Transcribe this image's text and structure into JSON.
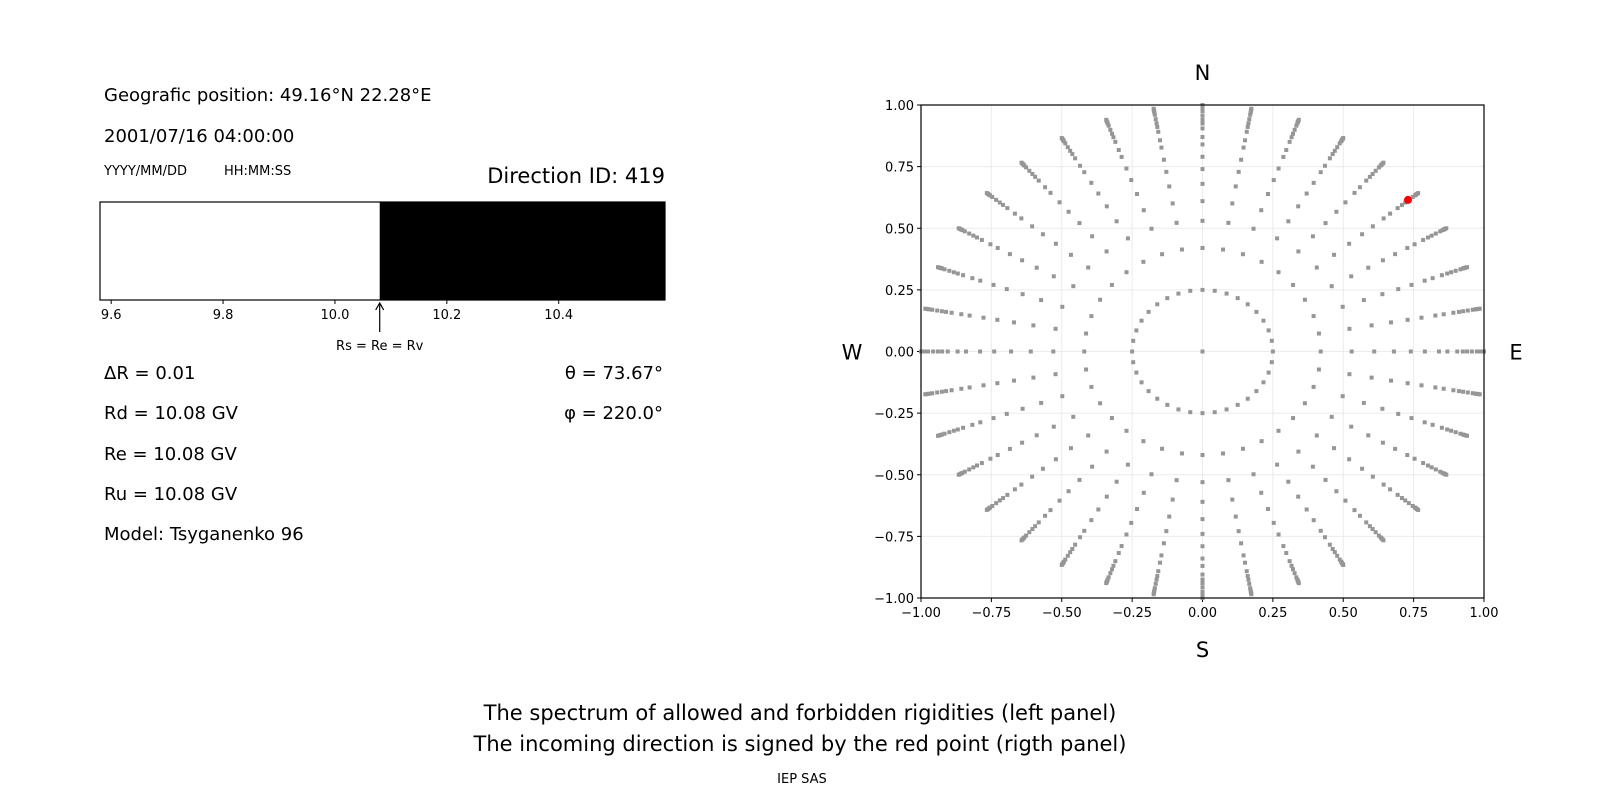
{
  "left_panel": {
    "position": "Geografic position: 49.16°N 22.28°E",
    "datetime": "2001/07/16 04:00:00",
    "date_format": "YYYY/MM/DD",
    "time_format": "HH:MM:SS",
    "direction_id": "Direction ID: 419",
    "delta_r": "ΔR = 0.01",
    "rd": "Rd = 10.08 GV",
    "re": "Re = 10.08 GV",
    "ru": "Ru = 10.08 GV",
    "model": "Model: Tsyganenko 96",
    "theta": "θ = 73.67°",
    "phi": "φ = 220.0°"
  },
  "footer": {
    "line1": "The spectrum of allowed and forbidden rigidities (left panel)",
    "line2": "The incoming direction is signed by the red point (rigth panel)",
    "credit": "IEP SAS"
  },
  "chart_data": [
    {
      "type": "bar",
      "description_of_marks": "rigidity spectrum: allowed (white) / forbidden (black)",
      "xlim": [
        9.58,
        10.59
      ],
      "x_ticks": [
        "9.6",
        "9.8",
        "10.0",
        "10.2",
        "10.4"
      ],
      "x_tick_values": [
        9.6,
        9.8,
        10.0,
        10.2,
        10.4
      ],
      "segments": [
        {
          "from": 9.58,
          "to": 10.08,
          "color": "#ffffff"
        },
        {
          "from": 10.08,
          "to": 10.59,
          "color": "#000000"
        }
      ],
      "annotation": {
        "text": "Rs = Re = Rv",
        "x": 10.08
      }
    },
    {
      "type": "scatter",
      "xlim": [
        -1,
        1
      ],
      "ylim": [
        -1,
        1
      ],
      "grid": true,
      "x_ticks": [
        "−1.00",
        "−0.75",
        "−0.50",
        "−0.25",
        "0.00",
        "0.25",
        "0.50",
        "0.75",
        "1.00"
      ],
      "y_ticks": [
        "−1.00",
        "−0.75",
        "−0.50",
        "−0.25",
        "0.00",
        "0.25",
        "0.50",
        "0.75",
        "1.00"
      ],
      "tick_values": [
        -1,
        -0.75,
        -0.5,
        -0.25,
        0,
        0.25,
        0.5,
        0.75,
        1
      ],
      "direction_labels": {
        "top": "N",
        "bottom": "S",
        "left": "W",
        "right": "E"
      },
      "grid_points": {
        "color": "#969696",
        "azimuths_deg": [
          0,
          10,
          20,
          30,
          40,
          50,
          60,
          70,
          80,
          90,
          100,
          110,
          120,
          130,
          140,
          150,
          160,
          170,
          180,
          190,
          200,
          210,
          220,
          230,
          240,
          250,
          260,
          270,
          280,
          290,
          300,
          310,
          320,
          330,
          340,
          350
        ],
        "radii": [
          0.25,
          0.42,
          0.53,
          0.61,
          0.68,
          0.74,
          0.79,
          0.84,
          0.87,
          0.905,
          0.925,
          0.94,
          0.957,
          0.975,
          0.985,
          0.99,
          0.995,
          1.0
        ],
        "center": [
          0,
          0
        ]
      },
      "highlight_point": {
        "x": 0.73,
        "y": 0.615,
        "color": "#ff0000"
      }
    }
  ]
}
